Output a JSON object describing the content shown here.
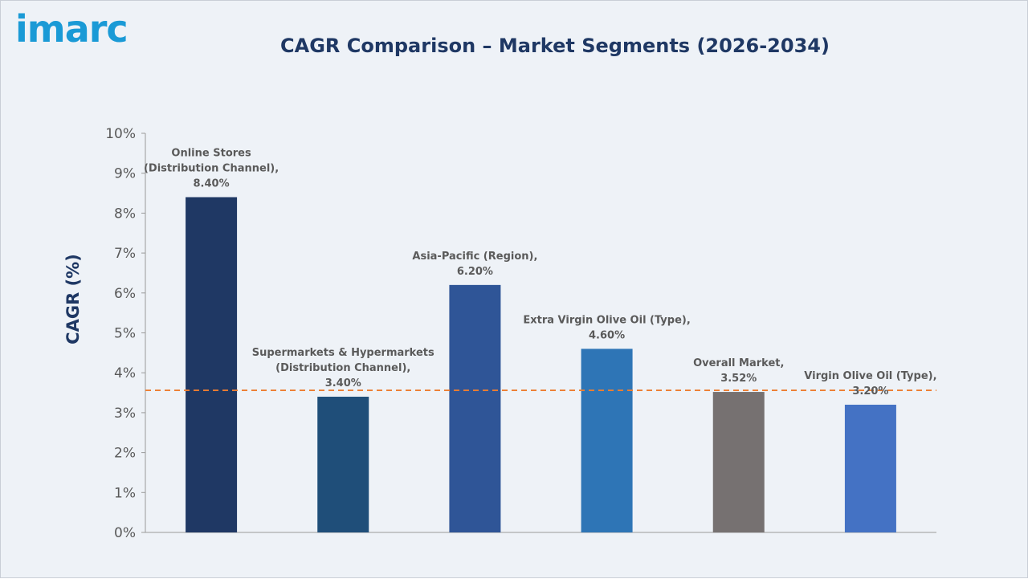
{
  "logo": {
    "text": "imarc"
  },
  "chart_data": {
    "type": "bar",
    "title": "CAGR Comparison – Market Segments (2026-2034)",
    "ylabel": "CAGR (%)",
    "xlabel": "",
    "ylim": [
      0,
      10
    ],
    "yticks": [
      0,
      1,
      2,
      3,
      4,
      5,
      6,
      7,
      8,
      9,
      10
    ],
    "ytick_labels": [
      "0%",
      "1%",
      "2%",
      "3%",
      "4%",
      "5%",
      "6%",
      "7%",
      "8%",
      "9%",
      "10%"
    ],
    "categories": [
      "Online Stores (Distribution Channel)",
      "Supermarkets & Hypermarkets (Distribution Channel)",
      "Asia-Pacific (Region)",
      "Extra Virgin Olive Oil (Type)",
      "Overall Market",
      "Virgin Olive Oil (Type)"
    ],
    "values": [
      8.4,
      3.4,
      6.2,
      4.6,
      3.52,
      3.2
    ],
    "data_labels": [
      [
        "Online Stores",
        "(Distribution Channel),",
        "8.40%"
      ],
      [
        "Supermarkets & Hypermarkets",
        "(Distribution Channel),",
        "3.40%"
      ],
      [
        "Asia-Pacific (Region),",
        "6.20%"
      ],
      [
        "Extra Virgin Olive Oil (Type),",
        "4.60%"
      ],
      [
        "Overall Market,",
        "3.52%"
      ],
      [
        "Virgin Olive Oil (Type),",
        "3.20%"
      ]
    ],
    "colors": [
      "#1f3864",
      "#1f4e79",
      "#2f5597",
      "#2e75b6",
      "#767171",
      "#4472c4"
    ],
    "reference_line": {
      "value": 3.52,
      "style": "dashed",
      "color": "#ed7d31"
    },
    "grid": false,
    "legend": "none"
  }
}
